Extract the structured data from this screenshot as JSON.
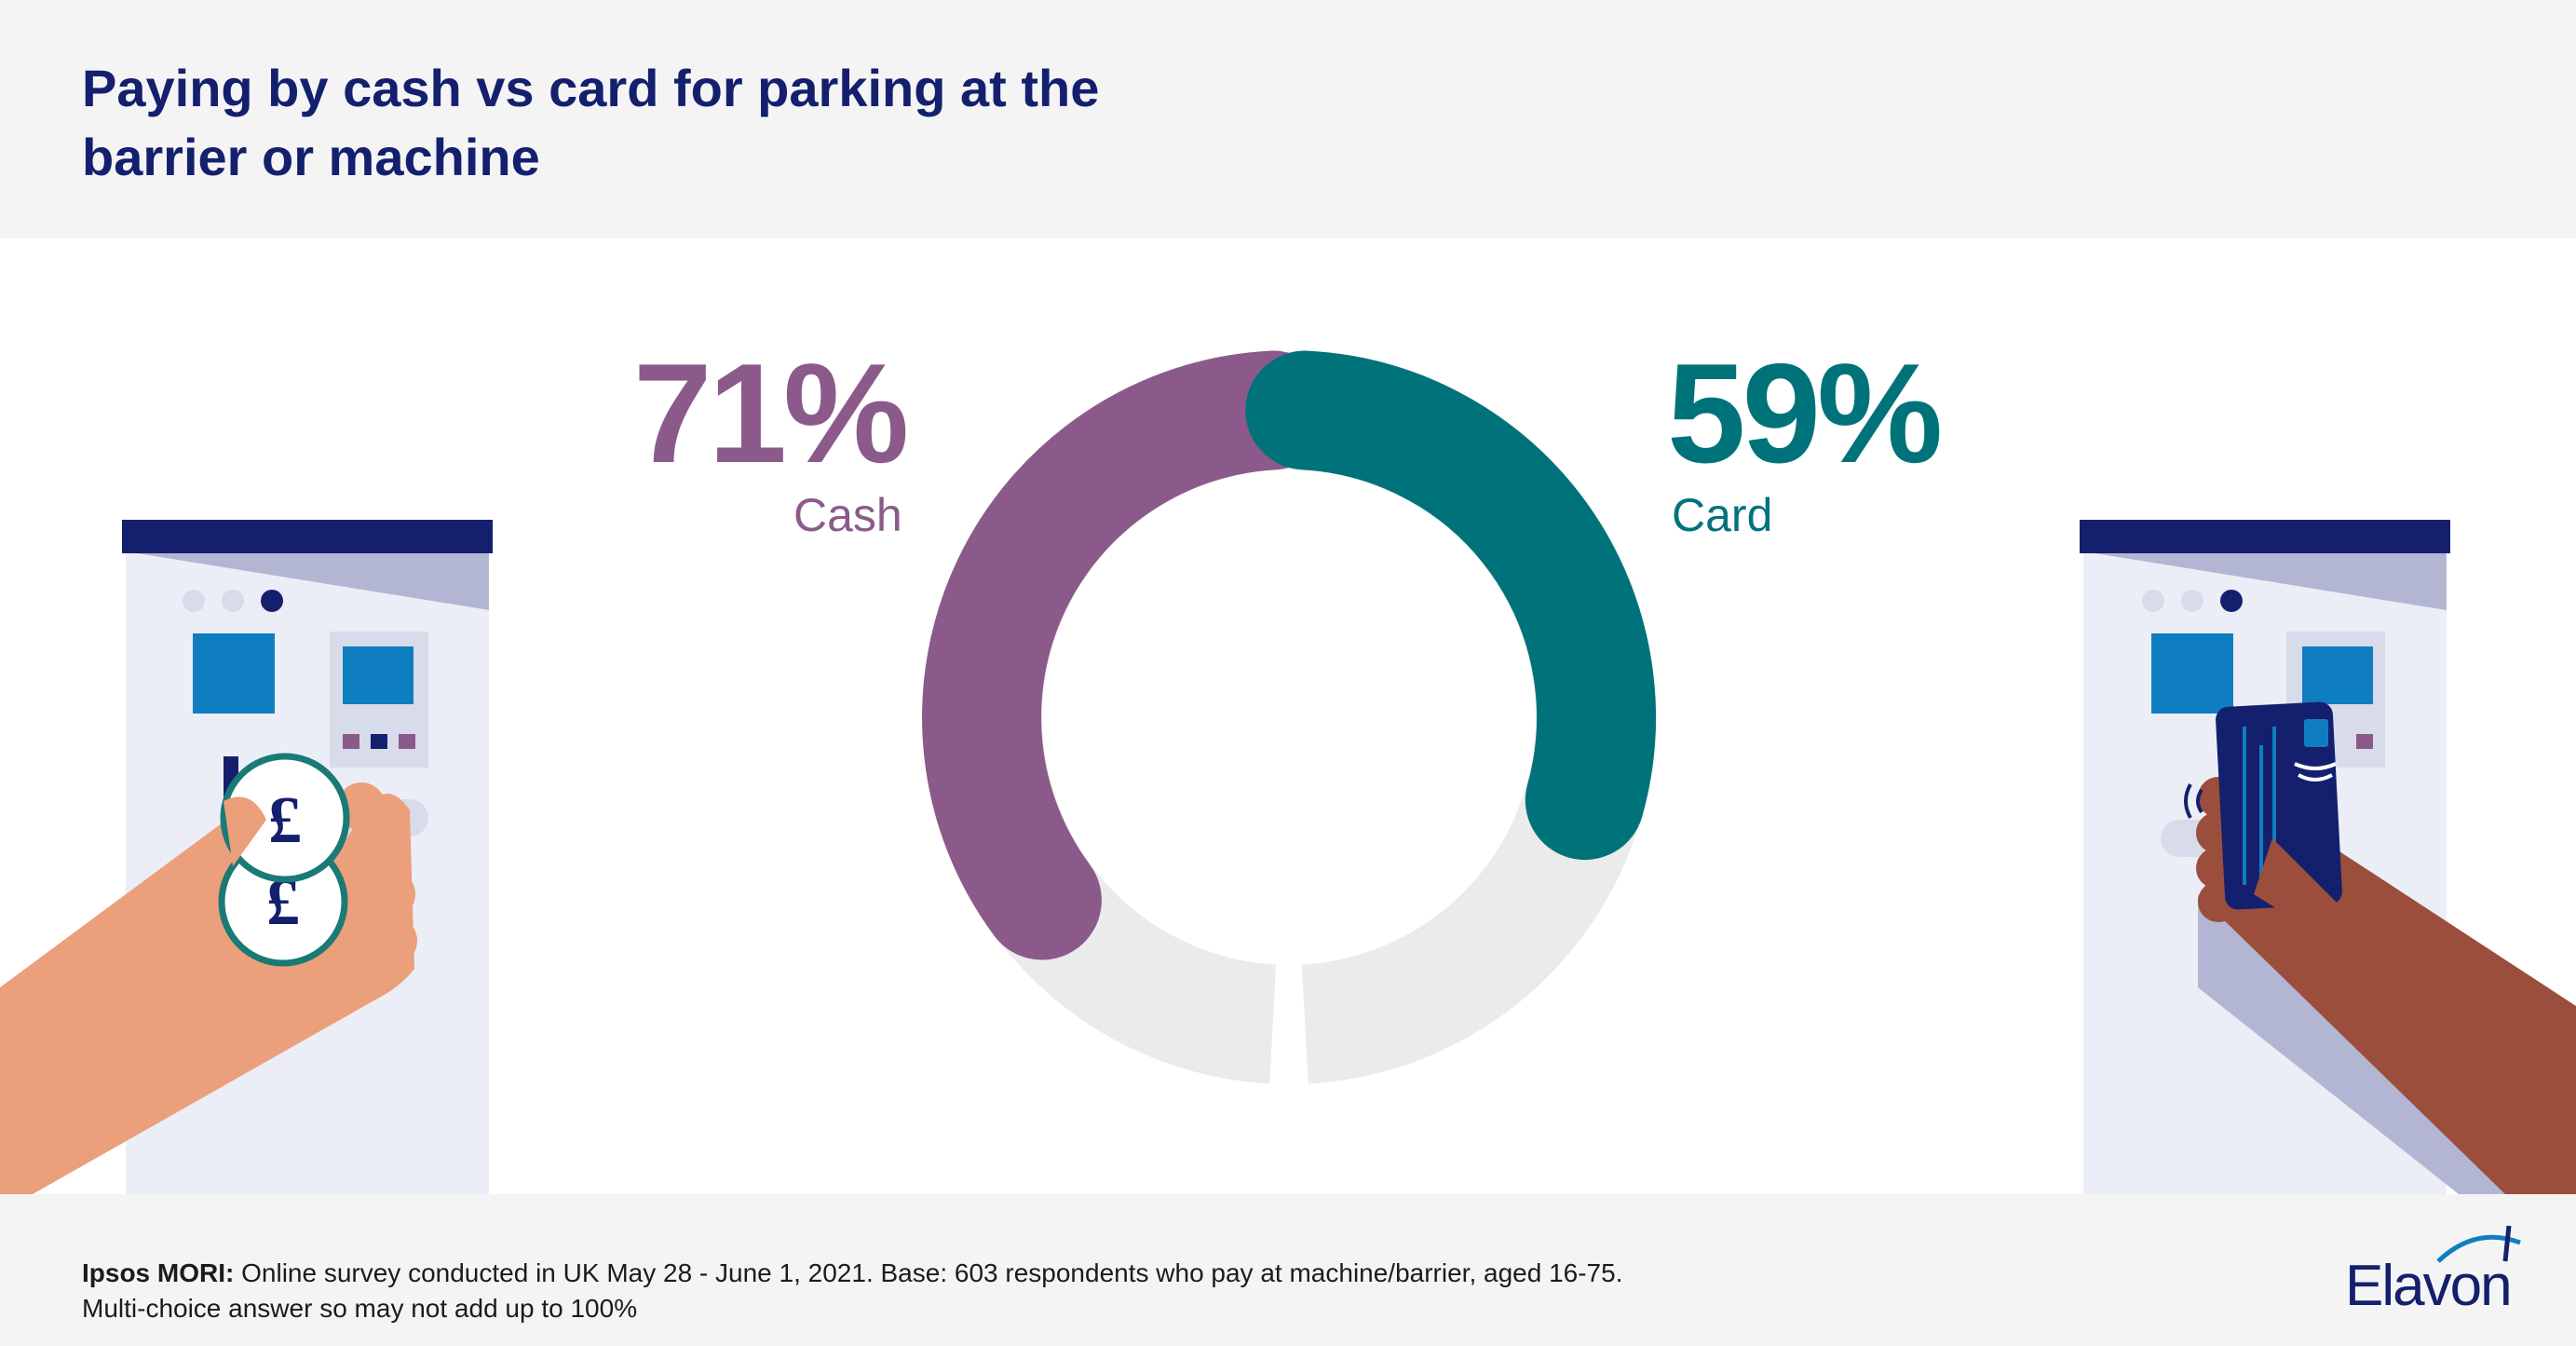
{
  "title_line1": "Paying by cash vs card for parking at the",
  "title_line2": "barrier or machine",
  "colors": {
    "title": "#14206e",
    "cash": "#8b5a8a",
    "card": "#00737a",
    "track": "#ebebeb",
    "header_bg": "#f4f4f4"
  },
  "chart_data": {
    "type": "pie",
    "title": "Paying by cash vs card for parking at the barrier or machine",
    "series": [
      {
        "name": "Cash",
        "value": 71,
        "label": "71%",
        "color": "#8b5a8a"
      },
      {
        "name": "Card",
        "value": 59,
        "label": "59%",
        "color": "#00737a"
      }
    ]
  },
  "footer": {
    "source_bold": "Ipsos MORI:",
    "source_text": " Online survey conducted in UK May 28 - June 1, 2021. Base: 603 respondents who pay at machine/barrier, aged 16-75.",
    "note": "Multi-choice answer so may not add up to 100%"
  },
  "logo": {
    "text": "Elavon"
  },
  "icons": [
    "cash-payment-machine-icon",
    "pound-coin-icon",
    "card-payment-machine-icon",
    "contactless-card-icon",
    "hand-icon"
  ]
}
